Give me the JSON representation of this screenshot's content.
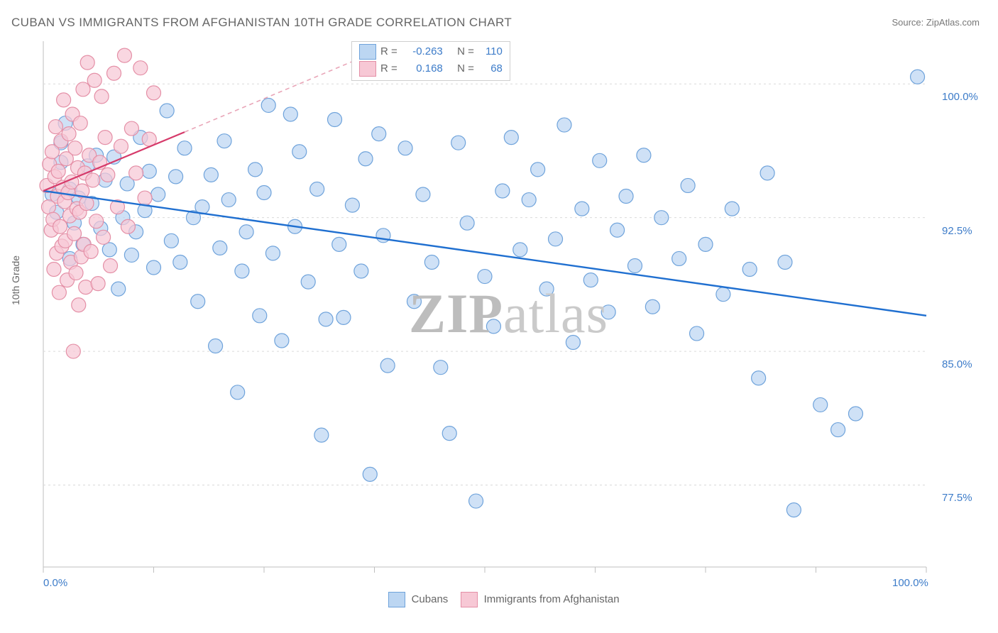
{
  "title": "CUBAN VS IMMIGRANTS FROM AFGHANISTAN 10TH GRADE CORRELATION CHART",
  "source_label": "Source: ZipAtlas.com",
  "ylabel": "10th Grade",
  "watermark": {
    "part1": "ZIP",
    "part2": "atlas"
  },
  "chart": {
    "type": "scatter",
    "background_color": "#ffffff",
    "grid_color": "#d9d9d9",
    "axis_color": "#bfbfbf",
    "xlim": [
      0,
      100
    ],
    "ylim": [
      72.9,
      102.4
    ],
    "x_ticks": [
      0,
      12.5,
      25,
      37.5,
      50,
      62.5,
      75,
      87.5,
      100
    ],
    "x_tick_labels": {
      "0": "0.0%",
      "100": "100.0%"
    },
    "y_ticks": [
      77.5,
      85.0,
      92.5,
      100.0
    ],
    "y_tick_labels": [
      "77.5%",
      "85.0%",
      "92.5%",
      "100.0%"
    ],
    "series": [
      {
        "name": "Cubans",
        "fill": "#bcd6f2",
        "stroke": "#6fa3db",
        "marker_radius": 10,
        "marker_opacity": 0.72,
        "R": -0.263,
        "N": 110,
        "trend": {
          "x1": 0,
          "y1": 94.0,
          "x2": 100,
          "y2": 87.0,
          "color": "#1f6fd0",
          "width": 2.4,
          "dash": ""
        },
        "points": [
          [
            1,
            93.8
          ],
          [
            1.5,
            92.8
          ],
          [
            2,
            95.6
          ],
          [
            2,
            96.7
          ],
          [
            2.5,
            97.8
          ],
          [
            3,
            94.1
          ],
          [
            3,
            90.2
          ],
          [
            3.5,
            92.2
          ],
          [
            4,
            93.6
          ],
          [
            4.5,
            91.0
          ],
          [
            5,
            95.4
          ],
          [
            5.5,
            93.3
          ],
          [
            6,
            96.0
          ],
          [
            6.5,
            91.9
          ],
          [
            7,
            94.6
          ],
          [
            7.5,
            90.7
          ],
          [
            8,
            95.9
          ],
          [
            8.5,
            88.5
          ],
          [
            9,
            92.5
          ],
          [
            9.5,
            94.4
          ],
          [
            10,
            90.4
          ],
          [
            10.5,
            91.7
          ],
          [
            11,
            97.0
          ],
          [
            11.5,
            92.9
          ],
          [
            12,
            95.1
          ],
          [
            12.5,
            89.7
          ],
          [
            13,
            93.8
          ],
          [
            14,
            98.5
          ],
          [
            14.5,
            91.2
          ],
          [
            15,
            94.8
          ],
          [
            15.5,
            90.0
          ],
          [
            16,
            96.4
          ],
          [
            17,
            92.5
          ],
          [
            17.5,
            87.8
          ],
          [
            18,
            93.1
          ],
          [
            19,
            94.9
          ],
          [
            19.5,
            85.3
          ],
          [
            20,
            90.8
          ],
          [
            20.5,
            96.8
          ],
          [
            21,
            93.5
          ],
          [
            22,
            82.7
          ],
          [
            22.5,
            89.5
          ],
          [
            23,
            91.7
          ],
          [
            24,
            95.2
          ],
          [
            24.5,
            87.0
          ],
          [
            25,
            93.9
          ],
          [
            25.5,
            98.8
          ],
          [
            26,
            90.5
          ],
          [
            27,
            85.6
          ],
          [
            28,
            98.3
          ],
          [
            28.5,
            92.0
          ],
          [
            29,
            96.2
          ],
          [
            30,
            88.9
          ],
          [
            31,
            94.1
          ],
          [
            31.5,
            80.3
          ],
          [
            32,
            86.8
          ],
          [
            33,
            98.0
          ],
          [
            33.5,
            91.0
          ],
          [
            34,
            86.9
          ],
          [
            35,
            93.2
          ],
          [
            36,
            89.5
          ],
          [
            36.5,
            95.8
          ],
          [
            37,
            78.1
          ],
          [
            38,
            97.2
          ],
          [
            38.5,
            91.5
          ],
          [
            39,
            84.2
          ],
          [
            41,
            96.4
          ],
          [
            42,
            87.8
          ],
          [
            43,
            93.8
          ],
          [
            44,
            90.0
          ],
          [
            45,
            84.1
          ],
          [
            46,
            80.4
          ],
          [
            47,
            96.7
          ],
          [
            48,
            92.2
          ],
          [
            49,
            76.6
          ],
          [
            50,
            89.2
          ],
          [
            51,
            86.4
          ],
          [
            52,
            94.0
          ],
          [
            53,
            97.0
          ],
          [
            54,
            90.7
          ],
          [
            55,
            93.5
          ],
          [
            56,
            95.2
          ],
          [
            57,
            88.5
          ],
          [
            58,
            91.3
          ],
          [
            59,
            97.7
          ],
          [
            60,
            85.5
          ],
          [
            61,
            93.0
          ],
          [
            62,
            89.0
          ],
          [
            63,
            95.7
          ],
          [
            64,
            87.2
          ],
          [
            65,
            91.8
          ],
          [
            66,
            93.7
          ],
          [
            67,
            89.8
          ],
          [
            68,
            96.0
          ],
          [
            69,
            87.5
          ],
          [
            70,
            92.5
          ],
          [
            72,
            90.2
          ],
          [
            73,
            94.3
          ],
          [
            74,
            86.0
          ],
          [
            75,
            91.0
          ],
          [
            77,
            88.2
          ],
          [
            78,
            93.0
          ],
          [
            80,
            89.6
          ],
          [
            81,
            83.5
          ],
          [
            82,
            95.0
          ],
          [
            84,
            90.0
          ],
          [
            85,
            76.1
          ],
          [
            88,
            82.0
          ],
          [
            90,
            80.6
          ],
          [
            92,
            81.5
          ],
          [
            99,
            100.4
          ]
        ]
      },
      {
        "name": "Immigrants from Afghanistan",
        "fill": "#f7c8d5",
        "stroke": "#e48fa6",
        "marker_radius": 10,
        "marker_opacity": 0.72,
        "R": 0.168,
        "N": 68,
        "trend_solid": {
          "x1": 0,
          "y1": 94.0,
          "x2": 16,
          "y2": 97.3,
          "color": "#d63a6a",
          "width": 2.2
        },
        "trend_dash": {
          "x1": 16,
          "y1": 97.3,
          "x2": 40,
          "y2": 102.3,
          "color": "#e9a6b8",
          "width": 1.6,
          "dash": "6 5"
        },
        "points": [
          [
            0.4,
            94.3
          ],
          [
            0.6,
            93.1
          ],
          [
            0.7,
            95.5
          ],
          [
            0.9,
            91.8
          ],
          [
            1.0,
            96.2
          ],
          [
            1.1,
            92.4
          ],
          [
            1.2,
            89.6
          ],
          [
            1.3,
            94.8
          ],
          [
            1.4,
            97.6
          ],
          [
            1.5,
            90.5
          ],
          [
            1.6,
            93.7
          ],
          [
            1.7,
            95.1
          ],
          [
            1.8,
            88.3
          ],
          [
            1.9,
            92.0
          ],
          [
            2.0,
            96.8
          ],
          [
            2.1,
            90.9
          ],
          [
            2.2,
            94.2
          ],
          [
            2.3,
            99.1
          ],
          [
            2.4,
            93.4
          ],
          [
            2.5,
            91.2
          ],
          [
            2.6,
            95.8
          ],
          [
            2.7,
            89.0
          ],
          [
            2.8,
            93.9
          ],
          [
            2.9,
            97.2
          ],
          [
            3.0,
            92.6
          ],
          [
            3.1,
            90.0
          ],
          [
            3.2,
            94.5
          ],
          [
            3.3,
            98.3
          ],
          [
            3.4,
            85.0
          ],
          [
            3.5,
            91.6
          ],
          [
            3.6,
            96.4
          ],
          [
            3.7,
            89.4
          ],
          [
            3.8,
            93.0
          ],
          [
            3.9,
            95.3
          ],
          [
            4.0,
            87.6
          ],
          [
            4.1,
            92.8
          ],
          [
            4.2,
            97.8
          ],
          [
            4.3,
            90.3
          ],
          [
            4.4,
            94.0
          ],
          [
            4.5,
            99.7
          ],
          [
            4.6,
            91.0
          ],
          [
            4.7,
            95.0
          ],
          [
            4.8,
            88.6
          ],
          [
            4.9,
            93.3
          ],
          [
            5.0,
            101.2
          ],
          [
            5.2,
            96.0
          ],
          [
            5.4,
            90.6
          ],
          [
            5.6,
            94.6
          ],
          [
            5.8,
            100.2
          ],
          [
            6.0,
            92.3
          ],
          [
            6.2,
            88.8
          ],
          [
            6.4,
            95.6
          ],
          [
            6.6,
            99.3
          ],
          [
            6.8,
            91.4
          ],
          [
            7.0,
            97.0
          ],
          [
            7.3,
            94.9
          ],
          [
            7.6,
            89.8
          ],
          [
            8.0,
            100.6
          ],
          [
            8.4,
            93.1
          ],
          [
            8.8,
            96.5
          ],
          [
            9.2,
            101.6
          ],
          [
            9.6,
            92.0
          ],
          [
            10.0,
            97.5
          ],
          [
            10.5,
            95.0
          ],
          [
            11.0,
            100.9
          ],
          [
            11.5,
            93.6
          ],
          [
            12.0,
            96.9
          ],
          [
            12.5,
            99.5
          ]
        ]
      }
    ]
  },
  "legend_top": {
    "rows": [
      {
        "sw_fill": "#bcd6f2",
        "sw_stroke": "#6fa3db",
        "R_label": "R =",
        "R_val": "-0.263",
        "N_label": "N =",
        "N_val": "110"
      },
      {
        "sw_fill": "#f7c8d5",
        "sw_stroke": "#e48fa6",
        "R_label": "R =",
        "R_val": "0.168",
        "N_label": "N =",
        "N_val": "68"
      }
    ]
  },
  "legend_bottom": [
    {
      "sw_fill": "#bcd6f2",
      "sw_stroke": "#6fa3db",
      "label": "Cubans"
    },
    {
      "sw_fill": "#f7c8d5",
      "sw_stroke": "#e48fa6",
      "label": "Immigrants from Afghanistan"
    }
  ]
}
